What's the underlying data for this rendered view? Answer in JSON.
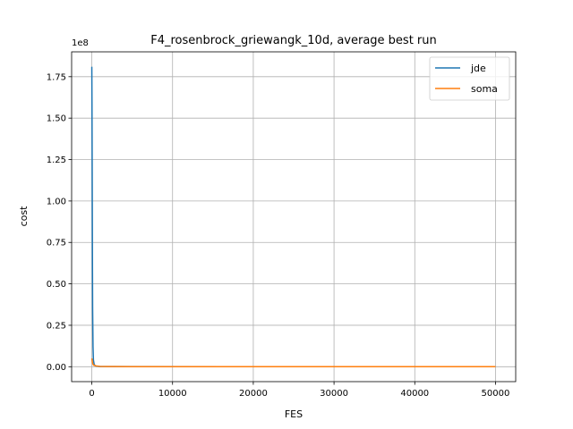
{
  "chart_data": {
    "type": "line",
    "title": "F4_rosenbrock_griewangk_10d, average best run",
    "xlabel": "FES",
    "ylabel": "cost",
    "y_offset_label": "1e8",
    "xlim": [
      -2500,
      52500
    ],
    "ylim": [
      -0.09,
      1.9
    ],
    "x_ticks": [
      0,
      10000,
      20000,
      30000,
      40000,
      50000
    ],
    "x_tick_labels": [
      "0",
      "10000",
      "20000",
      "30000",
      "40000",
      "50000"
    ],
    "y_ticks": [
      0.0,
      0.25,
      0.5,
      0.75,
      1.0,
      1.25,
      1.5,
      1.75
    ],
    "y_tick_labels": [
      "0.00",
      "0.25",
      "0.50",
      "0.75",
      "1.00",
      "1.25",
      "1.50",
      "1.75"
    ],
    "grid": true,
    "legend_position": "top-right",
    "series": [
      {
        "name": "jde",
        "color": "#1f77b4",
        "x": [
          0,
          20,
          40,
          60,
          80,
          100,
          150,
          200,
          300,
          500,
          1000,
          50000
        ],
        "y": [
          1.81,
          1.6,
          1.3,
          0.95,
          0.6,
          0.35,
          0.12,
          0.04,
          0.012,
          0.004,
          0.001,
          0.0
        ]
      },
      {
        "name": "soma",
        "color": "#ff7f0e",
        "x": [
          0,
          100,
          200,
          500,
          1000,
          2000,
          5000,
          50000
        ],
        "y": [
          0.05,
          0.02,
          0.01,
          0.005,
          0.002,
          0.001,
          0.0005,
          0.0
        ]
      }
    ]
  }
}
